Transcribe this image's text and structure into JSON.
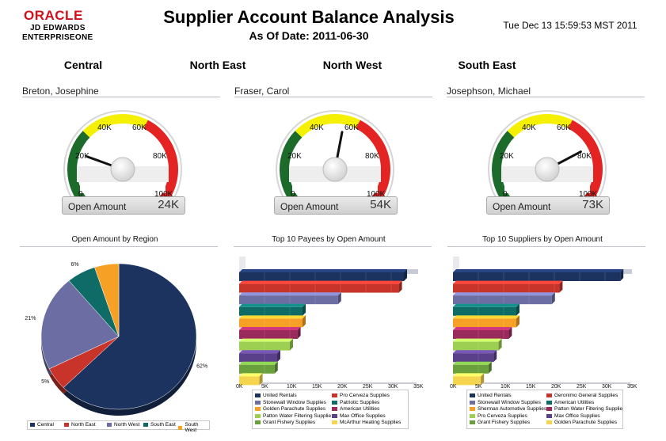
{
  "header": {
    "logo_oracle": "ORACLE",
    "logo_line1": "JD EDWARDS",
    "logo_line2": "ENTERPRISEONE",
    "title": "Supplier Account Balance Analysis",
    "subtitle": "As Of Date: 2011-06-30",
    "timestamp": "Tue Dec 13 15:59:53 MST 2011"
  },
  "regions": [
    "Central",
    "North East",
    "North West",
    "South East"
  ],
  "gauges": [
    {
      "manager": "Breton, Josephine",
      "label": "Open Amount",
      "display": "24K",
      "value": 24000
    },
    {
      "manager": "Fraser, Carol",
      "label": "Open Amount",
      "display": "54K",
      "value": 54000
    },
    {
      "manager": "Josephson, Michael",
      "label": "Open Amount",
      "display": "73K",
      "value": 73000
    }
  ],
  "gauge_ticks": [
    "0",
    "20K",
    "40K",
    "60K",
    "80K",
    "100K"
  ],
  "colors": {
    "green": "#1d6b2a",
    "yellow": "#f4f000",
    "red": "#e42323"
  },
  "chart_data": [
    {
      "type": "pie",
      "title": "Open Amount by Region",
      "categories": [
        "Central",
        "North East",
        "North West",
        "South East",
        "South West"
      ],
      "values": [
        62,
        5,
        21,
        6,
        5
      ],
      "labels": [
        "62%",
        "5%",
        "21%",
        "6%",
        "5%"
      ],
      "colors": [
        "#1c3360",
        "#c9342a",
        "#6c6ea3",
        "#0e6b66",
        "#f6a126"
      ],
      "legend": "bottom"
    },
    {
      "type": "bar",
      "orientation": "horizontal",
      "title": "Top 10 Payees by Open Amount",
      "categories": [
        "United Rentals",
        "Pro Cerveza Supplies",
        "Stonewall Window Supplies",
        "Patriotic Supplies",
        "Golden Parachute Supplies",
        "American Utilities",
        "Patton Water Filtering Supplie",
        "Max Office Supplies",
        "Grant Fishery Supplies",
        "McArthur Heating Supplies"
      ],
      "values": [
        32500,
        31500,
        19500,
        12500,
        12500,
        11500,
        10000,
        7500,
        7000,
        4000
      ],
      "colors": [
        "#1c3360",
        "#c9342a",
        "#6c6ea3",
        "#0e6b66",
        "#f6a126",
        "#9b2a5c",
        "#9ccf52",
        "#5a3f8a",
        "#6aa03c",
        "#f5d44e"
      ],
      "xticks": [
        "0K",
        "5K",
        "10K",
        "15K",
        "20K",
        "25K",
        "30K",
        "35K"
      ],
      "xlim": [
        0,
        35000
      ],
      "legend": "bottom"
    },
    {
      "type": "bar",
      "orientation": "horizontal",
      "title": "Top 10 Suppliers by Open Amount",
      "categories": [
        "United Rentals",
        "Geronimo General Supplies",
        "Stonewall Window Supplies",
        "American Utilities",
        "Sherman Automotive Supplies",
        "Patton Water Filtering Supplie",
        "Pro Cerveza Supplies",
        "Max Office Supplies",
        "Grant Fishery Supplies",
        "Golden Parachute Supplies"
      ],
      "values": [
        33000,
        21000,
        19500,
        12500,
        12500,
        11000,
        9000,
        8000,
        7000,
        5500
      ],
      "colors": [
        "#1c3360",
        "#c9342a",
        "#6c6ea3",
        "#0e6b66",
        "#f6a126",
        "#9b2a5c",
        "#9ccf52",
        "#5a3f8a",
        "#6aa03c",
        "#f5d44e"
      ],
      "xticks": [
        "0K",
        "5K",
        "10K",
        "15K",
        "20K",
        "25K",
        "30K",
        "35K"
      ],
      "xlim": [
        0,
        35000
      ],
      "legend": "bottom"
    }
  ]
}
